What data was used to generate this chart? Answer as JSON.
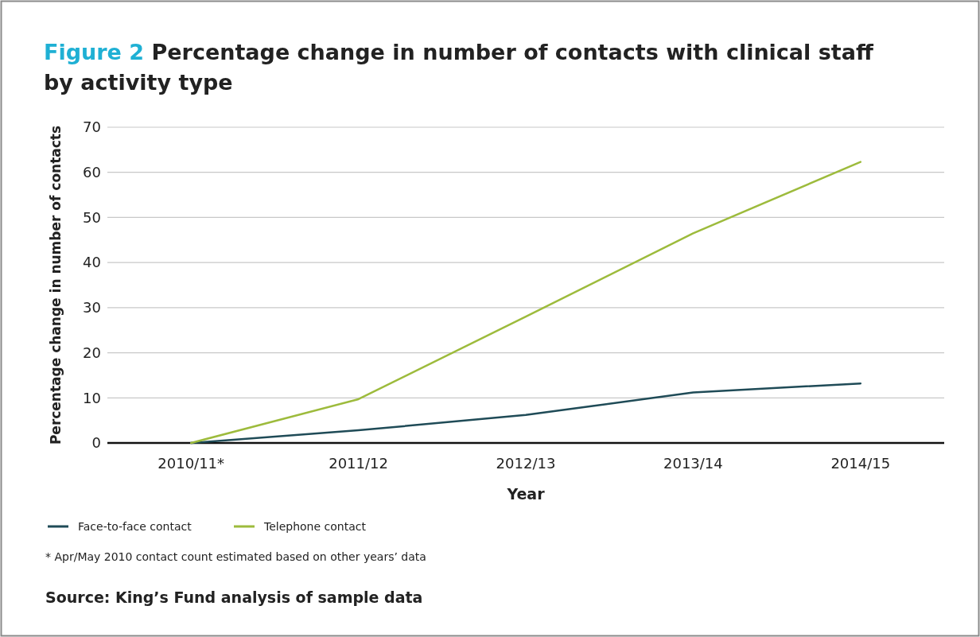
{
  "chart_data": {
    "type": "line",
    "title": "Figure 2 Percentage change in number of contacts with clinical staff by activity type",
    "xlabel": "Year",
    "ylabel": "Percentage change in number of contacts",
    "categories": [
      "2010/11*",
      "2011/12",
      "2012/13",
      "2013/14",
      "2014/15"
    ],
    "series": [
      {
        "name": "Face-to-face contact",
        "color": "#1f4b57",
        "values": [
          0,
          2.8,
          6.2,
          11.2,
          13.2
        ]
      },
      {
        "name": "Telephone contact",
        "color": "#9dbb3c",
        "values": [
          0,
          9.7,
          28,
          46.5,
          62.3
        ]
      }
    ],
    "ylim": [
      0,
      70
    ],
    "yticks": [
      0,
      10,
      20,
      30,
      40,
      50,
      60,
      70
    ],
    "grid": "y",
    "legend": "bottom left",
    "marker": "none",
    "line_style": "solid",
    "annotations": [
      "* Apr/May 2010 contact count estimated based on other years’ data",
      "Source: King’s Fund analysis of sample data"
    ]
  }
}
